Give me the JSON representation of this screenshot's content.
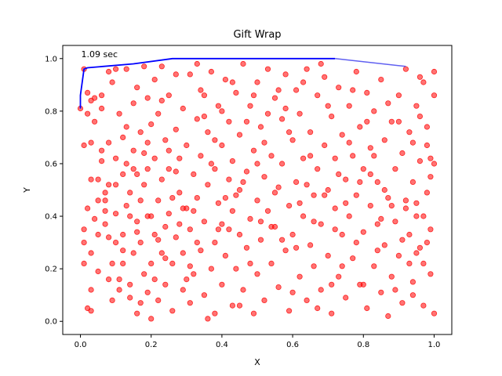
{
  "chart_data": {
    "type": "scatter",
    "title": "Gift Wrap",
    "xlabel": "X",
    "ylabel": "Y",
    "xlim": [
      -0.05,
      1.05
    ],
    "ylim": [
      -0.05,
      1.05
    ],
    "xticks": [
      0.0,
      0.2,
      0.4,
      0.6,
      0.8,
      1.0
    ],
    "yticks": [
      0.0,
      0.2,
      0.4,
      0.6,
      0.8,
      1.0
    ],
    "xtick_labels": [
      "0.0",
      "0.2",
      "0.4",
      "0.6",
      "0.8",
      "1.0"
    ],
    "ytick_labels": [
      "0.0",
      "0.2",
      "0.4",
      "0.6",
      "0.8",
      "1.0"
    ],
    "grid": false,
    "annotation": {
      "text": "1.09 sec",
      "x": 0.0,
      "y": 1.0
    },
    "colors": {
      "points": "#ff0000",
      "hull_done": "#0000ff",
      "hull_pending": "#4444ee"
    },
    "points": [
      [
        0.0,
        0.81
      ],
      [
        0.01,
        0.96
      ],
      [
        0.01,
        0.67
      ],
      [
        0.01,
        0.35
      ],
      [
        0.01,
        0.22
      ],
      [
        0.01,
        0.3
      ],
      [
        0.02,
        0.43
      ],
      [
        0.02,
        0.87
      ],
      [
        0.02,
        0.79
      ],
      [
        0.03,
        0.84
      ],
      [
        0.03,
        0.12
      ],
      [
        0.03,
        0.04
      ],
      [
        0.03,
        0.26
      ],
      [
        0.03,
        0.54
      ],
      [
        0.04,
        0.76
      ],
      [
        0.04,
        0.85
      ],
      [
        0.05,
        0.54
      ],
      [
        0.05,
        0.46
      ],
      [
        0.05,
        0.19
      ],
      [
        0.06,
        0.65
      ],
      [
        0.06,
        0.86
      ],
      [
        0.06,
        0.81
      ],
      [
        0.07,
        0.37
      ],
      [
        0.07,
        0.49
      ],
      [
        0.07,
        0.42
      ],
      [
        0.08,
        0.68
      ],
      [
        0.08,
        0.16
      ],
      [
        0.08,
        0.32
      ],
      [
        0.08,
        0.52
      ],
      [
        0.09,
        0.08
      ],
      [
        0.09,
        0.91
      ],
      [
        0.1,
        0.96
      ],
      [
        0.1,
        0.41
      ],
      [
        0.1,
        0.62
      ],
      [
        0.1,
        0.3
      ],
      [
        0.11,
        0.79
      ],
      [
        0.11,
        0.16
      ],
      [
        0.12,
        0.7
      ],
      [
        0.12,
        0.22
      ],
      [
        0.12,
        0.56
      ],
      [
        0.12,
        0.33
      ],
      [
        0.13,
        0.96
      ],
      [
        0.13,
        0.6
      ],
      [
        0.13,
        0.44
      ],
      [
        0.14,
        0.09
      ],
      [
        0.14,
        0.14
      ],
      [
        0.14,
        0.4
      ],
      [
        0.15,
        0.83
      ],
      [
        0.15,
        0.26
      ],
      [
        0.15,
        0.65
      ],
      [
        0.16,
        0.89
      ],
      [
        0.16,
        0.38
      ],
      [
        0.16,
        0.56
      ],
      [
        0.16,
        0.03
      ],
      [
        0.17,
        0.46
      ],
      [
        0.17,
        0.72
      ],
      [
        0.17,
        0.3
      ],
      [
        0.18,
        0.97
      ],
      [
        0.18,
        0.18
      ],
      [
        0.18,
        0.52
      ],
      [
        0.19,
        0.11
      ],
      [
        0.19,
        0.68
      ],
      [
        0.19,
        0.85
      ],
      [
        0.19,
        0.58
      ],
      [
        0.2,
        0.4
      ],
      [
        0.2,
        0.22
      ],
      [
        0.2,
        0.01
      ],
      [
        0.21,
        0.92
      ],
      [
        0.21,
        0.33
      ],
      [
        0.21,
        0.62
      ],
      [
        0.22,
        0.79
      ],
      [
        0.22,
        0.46
      ],
      [
        0.22,
        0.08
      ],
      [
        0.23,
        0.26
      ],
      [
        0.23,
        0.54
      ],
      [
        0.23,
        0.97
      ],
      [
        0.24,
        0.36
      ],
      [
        0.24,
        0.69
      ],
      [
        0.24,
        0.14
      ],
      [
        0.25,
        0.86
      ],
      [
        0.25,
        0.41
      ],
      [
        0.25,
        0.58
      ],
      [
        0.26,
        0.22
      ],
      [
        0.26,
        0.04
      ],
      [
        0.27,
        0.94
      ],
      [
        0.27,
        0.73
      ],
      [
        0.27,
        0.32
      ],
      [
        0.28,
        0.49
      ],
      [
        0.28,
        0.62
      ],
      [
        0.29,
        0.12
      ],
      [
        0.29,
        0.81
      ],
      [
        0.29,
        0.26
      ],
      [
        0.3,
        0.43
      ],
      [
        0.3,
        0.67
      ],
      [
        0.31,
        0.94
      ],
      [
        0.31,
        0.35
      ],
      [
        0.31,
        0.07
      ],
      [
        0.32,
        0.56
      ],
      [
        0.32,
        0.18
      ],
      [
        0.33,
        0.77
      ],
      [
        0.33,
        0.47
      ],
      [
        0.33,
        0.98
      ],
      [
        0.34,
        0.27
      ],
      [
        0.34,
        0.63
      ],
      [
        0.35,
        0.1
      ],
      [
        0.35,
        0.86
      ],
      [
        0.35,
        0.38
      ],
      [
        0.36,
        0.52
      ],
      [
        0.36,
        0.72
      ],
      [
        0.37,
        0.2
      ],
      [
        0.37,
        0.95
      ],
      [
        0.38,
        0.3
      ],
      [
        0.38,
        0.58
      ],
      [
        0.38,
        0.03
      ],
      [
        0.39,
        0.45
      ],
      [
        0.39,
        0.82
      ],
      [
        0.4,
        0.14
      ],
      [
        0.4,
        0.67
      ],
      [
        0.4,
        0.37
      ],
      [
        0.41,
        0.25
      ],
      [
        0.41,
        0.92
      ],
      [
        0.42,
        0.54
      ],
      [
        0.42,
        0.76
      ],
      [
        0.43,
        0.06
      ],
      [
        0.43,
        0.42
      ],
      [
        0.43,
        0.61
      ],
      [
        0.44,
        0.2
      ],
      [
        0.44,
        0.87
      ],
      [
        0.45,
        0.33
      ],
      [
        0.45,
        0.71
      ],
      [
        0.45,
        0.5
      ],
      [
        0.46,
        0.98
      ],
      [
        0.46,
        0.12
      ],
      [
        0.47,
        0.28
      ],
      [
        0.47,
        0.57
      ],
      [
        0.48,
        0.82
      ],
      [
        0.48,
        0.39
      ],
      [
        0.49,
        0.65
      ],
      [
        0.49,
        0.03
      ],
      [
        0.5,
        0.46
      ],
      [
        0.5,
        0.18
      ],
      [
        0.5,
        0.91
      ],
      [
        0.51,
        0.74
      ],
      [
        0.51,
        0.31
      ],
      [
        0.52,
        0.55
      ],
      [
        0.52,
        0.08
      ],
      [
        0.53,
        0.96
      ],
      [
        0.53,
        0.42
      ],
      [
        0.54,
        0.63
      ],
      [
        0.54,
        0.22
      ],
      [
        0.55,
        0.85
      ],
      [
        0.55,
        0.36
      ],
      [
        0.56,
        0.51
      ],
      [
        0.56,
        0.13
      ],
      [
        0.57,
        0.77
      ],
      [
        0.57,
        0.6
      ],
      [
        0.58,
        0.27
      ],
      [
        0.58,
        0.94
      ],
      [
        0.59,
        0.44
      ],
      [
        0.59,
        0.04
      ],
      [
        0.6,
        0.69
      ],
      [
        0.6,
        0.33
      ],
      [
        0.61,
        0.88
      ],
      [
        0.61,
        0.53
      ],
      [
        0.62,
        0.17
      ],
      [
        0.62,
        0.79
      ],
      [
        0.63,
        0.4
      ],
      [
        0.63,
        0.62
      ],
      [
        0.64,
        0.08
      ],
      [
        0.64,
        0.96
      ],
      [
        0.65,
        0.29
      ],
      [
        0.65,
        0.72
      ],
      [
        0.66,
        0.48
      ],
      [
        0.66,
        0.21
      ],
      [
        0.67,
        0.86
      ],
      [
        0.67,
        0.58
      ],
      [
        0.68,
        0.12
      ],
      [
        0.68,
        0.37
      ],
      [
        0.69,
        0.67
      ],
      [
        0.69,
        0.93
      ],
      [
        0.7,
        0.25
      ],
      [
        0.7,
        0.5
      ],
      [
        0.71,
        0.78
      ],
      [
        0.71,
        0.03
      ],
      [
        0.72,
        0.43
      ],
      [
        0.72,
        0.62
      ],
      [
        0.73,
        0.17
      ],
      [
        0.73,
        0.89
      ],
      [
        0.74,
        0.33
      ],
      [
        0.74,
        0.71
      ],
      [
        0.75,
        0.54
      ],
      [
        0.75,
        0.09
      ],
      [
        0.76,
        0.82
      ],
      [
        0.76,
        0.4
      ],
      [
        0.77,
        0.63
      ],
      [
        0.77,
        0.24
      ],
      [
        0.78,
        0.95
      ],
      [
        0.78,
        0.48
      ],
      [
        0.79,
        0.14
      ],
      [
        0.79,
        0.74
      ],
      [
        0.8,
        0.34
      ],
      [
        0.8,
        0.58
      ],
      [
        0.81,
        0.87
      ],
      [
        0.81,
        0.05
      ],
      [
        0.82,
        0.44
      ],
      [
        0.82,
        0.66
      ],
      [
        0.83,
        0.21
      ],
      [
        0.83,
        0.8
      ],
      [
        0.84,
        0.37
      ],
      [
        0.84,
        0.53
      ],
      [
        0.85,
        0.11
      ],
      [
        0.85,
        0.92
      ],
      [
        0.86,
        0.29
      ],
      [
        0.86,
        0.69
      ],
      [
        0.87,
        0.47
      ],
      [
        0.87,
        0.02
      ],
      [
        0.88,
        0.76
      ],
      [
        0.88,
        0.17
      ],
      [
        0.89,
        0.58
      ],
      [
        0.89,
        0.38
      ],
      [
        0.9,
        0.86
      ],
      [
        0.9,
        0.25
      ],
      [
        0.91,
        0.64
      ],
      [
        0.91,
        0.07
      ],
      [
        0.92,
        0.46
      ],
      [
        0.92,
        0.96
      ],
      [
        0.93,
        0.33
      ],
      [
        0.93,
        0.72
      ],
      [
        0.94,
        0.53
      ],
      [
        0.94,
        0.15
      ],
      [
        0.95,
        0.82
      ],
      [
        0.95,
        0.4
      ],
      [
        0.96,
        0.61
      ],
      [
        0.96,
        0.28
      ],
      [
        0.97,
        0.91
      ],
      [
        0.97,
        0.06
      ],
      [
        0.98,
        0.49
      ],
      [
        0.98,
        0.74
      ],
      [
        0.99,
        0.35
      ],
      [
        0.99,
        0.18
      ],
      [
        1.0,
        0.6
      ],
      [
        1.0,
        0.86
      ],
      [
        1.0,
        0.95
      ],
      [
        1.0,
        0.03
      ],
      [
        0.99,
        0.55
      ],
      [
        0.98,
        0.67
      ],
      [
        0.97,
        0.22
      ],
      [
        0.96,
        0.93
      ],
      [
        0.95,
        0.45
      ],
      [
        0.94,
        0.1
      ],
      [
        0.06,
        0.61
      ],
      [
        0.14,
        0.49
      ],
      [
        0.22,
        0.31
      ],
      [
        0.3,
        0.16
      ],
      [
        0.38,
        0.69
      ],
      [
        0.46,
        0.53
      ],
      [
        0.54,
        0.36
      ],
      [
        0.62,
        0.45
      ],
      [
        0.7,
        0.82
      ],
      [
        0.78,
        0.3
      ],
      [
        0.86,
        0.5
      ],
      [
        0.94,
        0.68
      ],
      [
        0.04,
        0.39
      ],
      [
        0.12,
        0.27
      ],
      [
        0.2,
        0.75
      ],
      [
        0.28,
        0.37
      ],
      [
        0.36,
        0.01
      ],
      [
        0.44,
        0.48
      ],
      [
        0.52,
        0.68
      ],
      [
        0.6,
        0.11
      ],
      [
        0.68,
        0.98
      ],
      [
        0.76,
        0.68
      ],
      [
        0.84,
        0.27
      ],
      [
        0.92,
        0.43
      ],
      [
        0.02,
        0.05
      ],
      [
        0.1,
        0.52
      ],
      [
        0.18,
        0.64
      ],
      [
        0.26,
        0.47
      ],
      [
        0.34,
        0.88
      ],
      [
        0.42,
        0.35
      ],
      [
        0.5,
        0.6
      ],
      [
        0.58,
        0.81
      ],
      [
        0.66,
        0.38
      ],
      [
        0.74,
        0.21
      ],
      [
        0.82,
        0.56
      ],
      [
        0.9,
        0.76
      ],
      [
        0.98,
        0.3
      ],
      [
        0.08,
        0.95
      ],
      [
        0.16,
        0.34
      ],
      [
        0.24,
        0.24
      ],
      [
        0.32,
        0.42
      ],
      [
        0.4,
        0.8
      ],
      [
        0.48,
        0.22
      ],
      [
        0.56,
        0.88
      ],
      [
        0.64,
        0.52
      ],
      [
        0.72,
        0.35
      ],
      [
        0.8,
        0.14
      ],
      [
        0.88,
        0.44
      ],
      [
        0.96,
        0.78
      ],
      [
        0.03,
        0.68
      ],
      [
        0.11,
        0.12
      ],
      [
        0.19,
        0.4
      ],
      [
        0.27,
        0.57
      ],
      [
        0.35,
        0.78
      ],
      [
        0.43,
        0.91
      ],
      [
        0.51,
        0.38
      ],
      [
        0.59,
        0.72
      ],
      [
        0.67,
        0.05
      ],
      [
        0.75,
        0.45
      ],
      [
        0.83,
        0.63
      ],
      [
        0.91,
        0.31
      ],
      [
        0.99,
        0.62
      ],
      [
        0.05,
        0.33
      ],
      [
        0.13,
        0.74
      ],
      [
        0.21,
        0.16
      ],
      [
        0.29,
        0.43
      ],
      [
        0.37,
        0.6
      ],
      [
        0.45,
        0.06
      ],
      [
        0.53,
        0.79
      ],
      [
        0.61,
        0.28
      ],
      [
        0.69,
        0.48
      ],
      [
        0.77,
        0.88
      ],
      [
        0.85,
        0.39
      ],
      [
        0.93,
        0.22
      ],
      [
        0.07,
        0.46
      ],
      [
        0.15,
        0.58
      ],
      [
        0.23,
        0.84
      ],
      [
        0.31,
        0.21
      ],
      [
        0.39,
        0.35
      ],
      [
        0.47,
        0.76
      ],
      [
        0.55,
        0.49
      ],
      [
        0.63,
        0.91
      ],
      [
        0.71,
        0.14
      ],
      [
        0.79,
        0.53
      ],
      [
        0.87,
        0.83
      ],
      [
        0.95,
        0.26
      ],
      [
        0.09,
        0.22
      ],
      [
        0.17,
        0.07
      ],
      [
        0.25,
        0.65
      ],
      [
        0.33,
        0.3
      ],
      [
        0.41,
        0.47
      ],
      [
        0.49,
        0.86
      ],
      [
        0.57,
        0.31
      ],
      [
        0.65,
        0.63
      ],
      [
        0.73,
        0.56
      ],
      [
        0.81,
        0.76
      ],
      [
        0.89,
        0.12
      ],
      [
        0.97,
        0.4
      ]
    ],
    "hull": [
      [
        0.0,
        0.81
      ],
      [
        0.0,
        0.86
      ],
      [
        0.01,
        0.96
      ],
      [
        0.02,
        0.965
      ],
      [
        0.15,
        0.98
      ],
      [
        0.26,
        1.0
      ],
      [
        0.5,
        1.0
      ],
      [
        0.72,
        1.0
      ]
    ],
    "hull_pending": [
      [
        0.72,
        1.0
      ],
      [
        0.92,
        0.97
      ]
    ]
  }
}
